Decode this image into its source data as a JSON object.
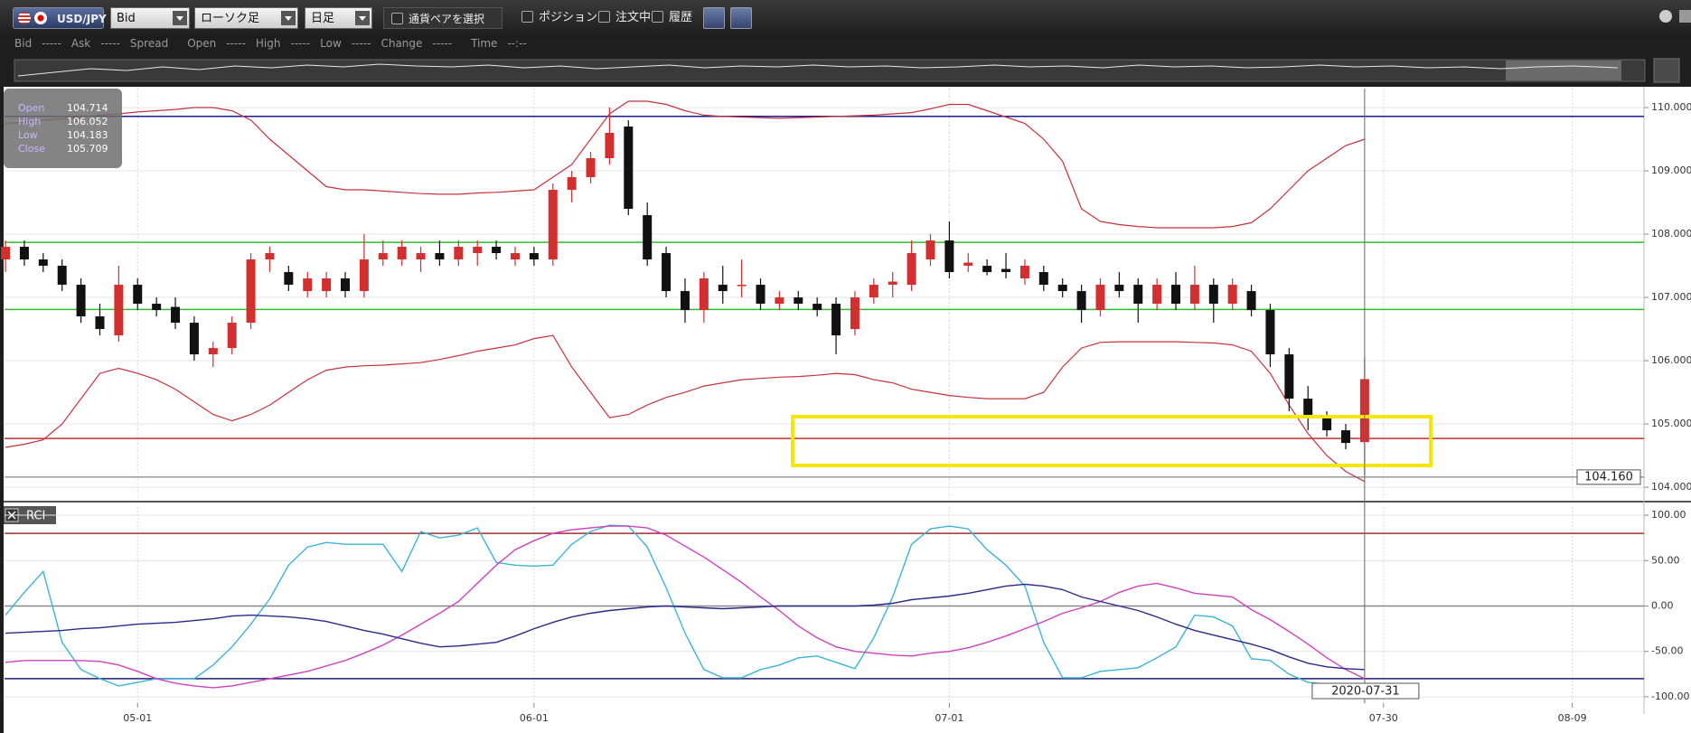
{
  "toolbar": {
    "pair": "USD/JPY",
    "price_side": "Bid",
    "chart_style": "ローソク足",
    "timeframe": "日足",
    "select_pair": "通貨ペアを選択",
    "options": [
      "ポジション",
      "注文中",
      "履歴"
    ]
  },
  "info_bar": [
    "Bid",
    "-----",
    "Ask",
    "-----",
    "Spread",
    "Open",
    "-----",
    "High",
    "-----",
    "Low",
    "-----",
    "Change",
    "-----",
    "Time",
    "--:--"
  ],
  "ohlc_box": [
    "Open",
    "High",
    "Low",
    "Close"
  ],
  "crosshair": {
    "date": "2020-07-31",
    "price": {
      "value": 104.16,
      "label": "104.160"
    }
  },
  "chart_data": [
    {
      "type": "candlestick",
      "open": [
        107.6,
        107.8,
        107.6,
        107.5,
        107.2,
        106.7,
        106.4,
        107.2,
        106.9,
        106.85,
        106.6,
        106.1,
        106.2,
        106.6,
        107.6,
        107.4,
        107.1,
        107.1,
        107.3,
        107.1,
        107.6,
        107.6,
        107.6,
        107.7,
        107.6,
        107.7,
        107.8,
        107.6,
        107.7,
        107.6,
        108.7,
        108.9,
        109.2,
        109.7,
        108.3,
        107.7,
        107.1,
        106.8,
        107.2,
        107.2,
        107.2,
        106.9,
        107.0,
        106.9,
        106.9,
        106.5,
        107.0,
        107.2,
        107.2,
        107.6,
        107.9,
        107.5,
        107.5,
        107.45,
        107.3,
        107.4,
        107.2,
        107.1,
        106.8,
        107.2,
        107.2,
        106.9,
        107.2,
        106.9,
        107.2,
        106.9,
        107.1,
        106.8,
        106.1,
        105.4,
        105.1,
        104.9,
        104.714
      ],
      "high": [
        107.9,
        107.9,
        107.7,
        107.6,
        107.3,
        106.9,
        107.5,
        107.3,
        107.0,
        107.0,
        106.7,
        106.3,
        106.7,
        107.7,
        107.8,
        107.5,
        107.4,
        107.4,
        107.4,
        108.0,
        107.9,
        107.9,
        107.8,
        107.9,
        107.9,
        107.9,
        107.9,
        107.8,
        107.8,
        108.8,
        109.0,
        109.3,
        110.0,
        109.8,
        108.5,
        107.8,
        107.3,
        107.4,
        107.5,
        107.6,
        107.3,
        107.1,
        107.1,
        107.0,
        107.0,
        107.1,
        107.3,
        107.4,
        107.9,
        108.0,
        108.2,
        107.7,
        107.6,
        107.7,
        107.6,
        107.5,
        107.3,
        107.2,
        107.3,
        107.4,
        107.3,
        107.3,
        107.4,
        107.5,
        107.3,
        107.3,
        107.2,
        106.9,
        106.2,
        105.6,
        105.2,
        105.0,
        106.052
      ],
      "low": [
        107.4,
        107.5,
        107.4,
        107.1,
        106.6,
        106.4,
        106.3,
        106.8,
        106.7,
        106.5,
        106.0,
        105.9,
        106.1,
        106.5,
        107.4,
        107.1,
        107.0,
        107.0,
        107.0,
        107.0,
        107.5,
        107.5,
        107.4,
        107.5,
        107.5,
        107.5,
        107.6,
        107.5,
        107.5,
        107.5,
        108.5,
        108.8,
        109.1,
        108.3,
        107.5,
        107.0,
        106.6,
        106.6,
        106.9,
        107.0,
        106.8,
        106.8,
        106.8,
        106.7,
        106.1,
        106.4,
        106.9,
        107.0,
        107.1,
        107.5,
        107.3,
        107.4,
        107.35,
        107.3,
        107.2,
        107.1,
        107.0,
        106.6,
        106.7,
        107.0,
        106.6,
        106.8,
        106.8,
        106.8,
        106.6,
        106.8,
        106.7,
        105.9,
        105.2,
        104.9,
        104.8,
        104.6,
        104.183
      ],
      "close": [
        107.8,
        107.6,
        107.5,
        107.2,
        106.7,
        106.5,
        107.2,
        106.9,
        106.8,
        106.6,
        106.1,
        106.2,
        106.6,
        107.6,
        107.7,
        107.2,
        107.3,
        107.3,
        107.1,
        107.6,
        107.7,
        107.8,
        107.7,
        107.6,
        107.8,
        107.8,
        107.7,
        107.7,
        107.6,
        108.7,
        108.9,
        109.2,
        109.6,
        108.4,
        107.6,
        107.1,
        106.8,
        107.3,
        107.1,
        107.2,
        106.9,
        107.0,
        106.9,
        106.8,
        106.4,
        107.0,
        107.2,
        107.25,
        107.7,
        107.9,
        107.4,
        107.55,
        107.4,
        107.4,
        107.5,
        107.2,
        107.1,
        106.8,
        107.2,
        107.1,
        106.9,
        107.2,
        106.9,
        107.2,
        106.9,
        107.2,
        106.8,
        106.1,
        105.4,
        105.1,
        104.9,
        104.7,
        105.709
      ],
      "up_color": "#d32f2f",
      "down_color": "#111111",
      "bands": [
        {
          "color": "#c8323c",
          "values": [
            109.75,
            109.77,
            109.8,
            109.82,
            109.85,
            109.88,
            109.9,
            109.93,
            109.95,
            109.97,
            110.0,
            110.0,
            109.95,
            109.8,
            109.5,
            109.25,
            109.0,
            108.75,
            108.7,
            108.7,
            108.68,
            108.66,
            108.64,
            108.63,
            108.63,
            108.65,
            108.66,
            108.68,
            108.7,
            108.9,
            109.1,
            109.5,
            109.9,
            110.1,
            110.1,
            110.05,
            109.95,
            109.88,
            109.86,
            109.85,
            109.84,
            109.83,
            109.84,
            109.85,
            109.86,
            109.87,
            109.88,
            109.9,
            109.92,
            109.98,
            110.05,
            110.05,
            109.95,
            109.85,
            109.75,
            109.5,
            109.15,
            108.4,
            108.2,
            108.15,
            108.12,
            108.1,
            108.1,
            108.1,
            108.1,
            108.12,
            108.18,
            108.4,
            108.7,
            109.0,
            109.2,
            109.4,
            109.5
          ]
        },
        {
          "color": "#c8323c",
          "values": [
            104.63,
            104.68,
            104.75,
            105.0,
            105.4,
            105.8,
            105.88,
            105.8,
            105.7,
            105.55,
            105.35,
            105.15,
            105.05,
            105.15,
            105.3,
            105.5,
            105.7,
            105.85,
            105.9,
            105.92,
            105.93,
            105.95,
            105.97,
            106.02,
            106.08,
            106.15,
            106.2,
            106.25,
            106.35,
            106.4,
            105.9,
            105.5,
            105.1,
            105.15,
            105.3,
            105.42,
            105.5,
            105.6,
            105.65,
            105.7,
            105.72,
            105.74,
            105.75,
            105.77,
            105.8,
            105.78,
            105.7,
            105.65,
            105.55,
            105.5,
            105.45,
            105.42,
            105.4,
            105.4,
            105.4,
            105.5,
            105.9,
            106.2,
            106.29,
            106.3,
            106.3,
            106.3,
            106.3,
            106.29,
            106.28,
            106.25,
            106.15,
            105.8,
            105.3,
            104.85,
            104.5,
            104.25,
            104.09
          ]
        }
      ],
      "hlines": [
        {
          "value": 109.86,
          "color": "#1a1a8c"
        },
        {
          "value": 107.87,
          "color": "#2fbf2f"
        },
        {
          "value": 106.81,
          "color": "#2fbf2f"
        },
        {
          "value": 104.77,
          "color": "#c03030"
        }
      ],
      "ylim": [
        103.83,
        110.3
      ],
      "yticks": [
        {
          "value": 104,
          "label": "104.000"
        },
        {
          "value": 105,
          "label": "105.000"
        },
        {
          "value": 106,
          "label": "106.000"
        },
        {
          "value": 107,
          "label": "107.000"
        },
        {
          "value": 108,
          "label": "108.000"
        },
        {
          "value": 109,
          "label": "109.000"
        },
        {
          "value": 110,
          "label": "110.000"
        }
      ],
      "grid": true
    },
    {
      "type": "line",
      "title": "RCI",
      "series": [
        {
          "color": "#3bb4d8",
          "values": [
            -10,
            15,
            38,
            -40,
            -70,
            -80,
            -88,
            -84,
            -80,
            -80,
            -80,
            -65,
            -45,
            -20,
            8,
            45,
            65,
            70,
            68,
            68,
            68,
            38,
            82,
            75,
            78,
            86,
            48,
            45,
            44,
            45,
            68,
            82,
            89,
            88,
            65,
            20,
            -30,
            -70,
            -79,
            -79,
            -70,
            -65,
            -57,
            -55,
            -62,
            -69,
            -35,
            10,
            68,
            85,
            88,
            85,
            62,
            45,
            22,
            -40,
            -79,
            -79,
            -72,
            -70,
            -68,
            -57,
            -45,
            -10,
            -12,
            -22,
            -58,
            -60,
            -75,
            -84,
            -86,
            -87,
            -87
          ]
        },
        {
          "color": "#d040c0",
          "values": [
            -62,
            -60,
            -60,
            -60,
            -60,
            -61,
            -65,
            -72,
            -80,
            -85,
            -88,
            -90,
            -88,
            -84,
            -80,
            -76,
            -72,
            -66,
            -60,
            -52,
            -43,
            -32,
            -20,
            -8,
            5,
            25,
            45,
            62,
            72,
            80,
            84,
            86,
            88,
            88,
            86,
            78,
            66,
            54,
            40,
            26,
            10,
            -5,
            -22,
            -35,
            -45,
            -50,
            -52,
            -54,
            -55,
            -52,
            -50,
            -46,
            -40,
            -33,
            -25,
            -17,
            -8,
            -2,
            5,
            15,
            22,
            25,
            20,
            14,
            12,
            10,
            -4,
            -15,
            -28,
            -42,
            -57,
            -70,
            -80
          ]
        },
        {
          "color": "#2a2a8a",
          "values": [
            -30,
            -29,
            -28,
            -27,
            -25,
            -24,
            -22,
            -20,
            -19,
            -18,
            -16,
            -14,
            -11,
            -10,
            -11,
            -12,
            -14,
            -17,
            -22,
            -27,
            -31,
            -36,
            -41,
            -45,
            -44,
            -42,
            -40,
            -33,
            -25,
            -18,
            -12,
            -8,
            -5,
            -3,
            -1,
            0,
            -1,
            -2,
            -3,
            -2,
            -1,
            0,
            0,
            0,
            0,
            0,
            1,
            3,
            7,
            9,
            11,
            14,
            18,
            22,
            24,
            22,
            18,
            10,
            5,
            0,
            -5,
            -12,
            -20,
            -27,
            -32,
            -37,
            -42,
            -48,
            -56,
            -63,
            -67,
            -69,
            -70
          ]
        }
      ],
      "hlines": [
        {
          "value": 80,
          "color": "#a03030"
        },
        {
          "value": 0,
          "color": "#888888"
        },
        {
          "value": -80,
          "color": "#202070"
        }
      ],
      "ylim": [
        -107,
        109
      ],
      "yticks": [
        {
          "value": 100,
          "label": "100.00"
        },
        {
          "value": 50,
          "label": "50.00"
        },
        {
          "value": 0,
          "label": "0.00"
        },
        {
          "value": -50,
          "label": "-50.00"
        },
        {
          "value": -100,
          "label": "-100.00"
        }
      ],
      "xlim": [
        -0.05,
        86.8
      ],
      "xticks": [
        {
          "value": 7,
          "label": "05-01"
        },
        {
          "value": 28,
          "label": "06-01"
        },
        {
          "value": 50,
          "label": "07-01"
        },
        {
          "value": 73,
          "label": "07-30"
        },
        {
          "value": 83,
          "label": "08-09"
        }
      ],
      "grid": true
    }
  ]
}
